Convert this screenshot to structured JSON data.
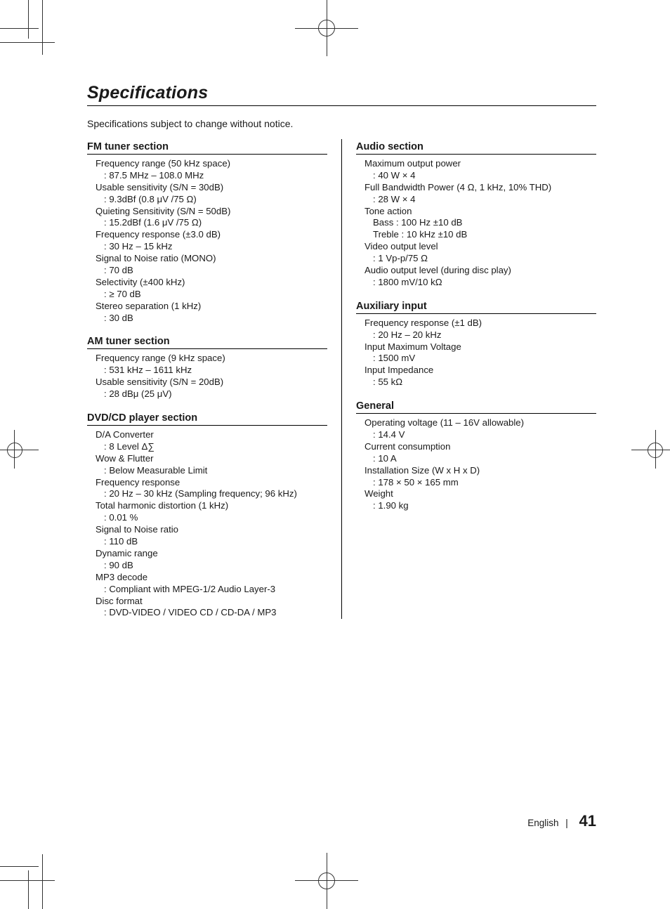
{
  "title": "Specifications",
  "note_text": "Specifications subject to change without notice.",
  "colors": {
    "text": "#1a1a1a",
    "rule": "#000000",
    "bg": "#ffffff"
  },
  "fonts": {
    "title_pt": 25,
    "section_pt": 14.5,
    "body_pt": 13.2
  },
  "layout": {
    "columns": 2,
    "rule_between_columns": true
  },
  "left": [
    {
      "heading": "FM tuner section",
      "items": [
        {
          "label": "Frequency range (50 kHz space)",
          "value": ": 87.5 MHz – 108.0 MHz"
        },
        {
          "label": "Usable sensitivity (S/N = 30dB)",
          "value": ": 9.3dBf (0.8 μV /75 Ω)"
        },
        {
          "label": "Quieting Sensitivity (S/N = 50dB)",
          "value": ": 15.2dBf (1.6 μV /75 Ω)"
        },
        {
          "label": "Frequency response (±3.0 dB)",
          "value": ": 30 Hz – 15 kHz"
        },
        {
          "label": "Signal to Noise ratio (MONO)",
          "value": ": 70 dB"
        },
        {
          "label": "Selectivity (±400 kHz)",
          "value": ": ≥ 70 dB"
        },
        {
          "label": "Stereo separation (1 kHz)",
          "value": ": 30 dB"
        }
      ]
    },
    {
      "heading": "AM tuner section",
      "items": [
        {
          "label": "Frequency range (9 kHz space)",
          "value": ": 531 kHz – 1611 kHz"
        },
        {
          "label": "Usable sensitivity (S/N = 20dB)",
          "value": ": 28 dBμ (25 μV)"
        }
      ]
    },
    {
      "heading": "DVD/CD player section",
      "items": [
        {
          "label": "D/A Converter",
          "value": ": 8 Level Δ∑"
        },
        {
          "label": "Wow & Flutter",
          "value": ": Below Measurable Limit"
        },
        {
          "label": "Frequency response",
          "value": ": 20 Hz – 30 kHz (Sampling frequency; 96 kHz)"
        },
        {
          "label": "Total harmonic distortion (1 kHz)",
          "value": ": 0.01 %"
        },
        {
          "label": "Signal to Noise ratio",
          "value": ": 110 dB"
        },
        {
          "label": "Dynamic range",
          "value": ": 90 dB"
        },
        {
          "label": "MP3 decode",
          "value": ": Compliant with MPEG-1/2 Audio Layer-3"
        },
        {
          "label": "Disc format",
          "value": ": DVD-VIDEO / VIDEO CD / CD-DA / MP3"
        }
      ]
    }
  ],
  "right": [
    {
      "heading": "Audio section",
      "items": [
        {
          "label": "Maximum output power",
          "value": ": 40 W × 4"
        },
        {
          "label": "Full Bandwidth Power (4 Ω, 1 kHz, 10% THD)",
          "value": ": 28 W × 4"
        },
        {
          "label": "Tone action",
          "value": "Bass : 100 Hz ±10 dB",
          "value2": "Treble : 10 kHz ±10 dB"
        },
        {
          "label": "Video output level",
          "value": ": 1 Vp-p/75 Ω"
        },
        {
          "label": "Audio output level (during disc play)",
          "value": ": 1800 mV/10 kΩ"
        }
      ]
    },
    {
      "heading": "Auxiliary input",
      "items": [
        {
          "label": "Frequency response (±1 dB)",
          "value": ": 20 Hz – 20 kHz"
        },
        {
          "label": "Input Maximum Voltage",
          "value": ": 1500 mV"
        },
        {
          "label": "Input Impedance",
          "value": ": 55 kΩ"
        }
      ]
    },
    {
      "heading": "General",
      "items": [
        {
          "label": "Operating voltage (11 – 16V allowable)",
          "value": ": 14.4 V"
        },
        {
          "label": "Current consumption",
          "value": ": 10 A"
        },
        {
          "label": "Installation Size (W x H x D)",
          "value": ": 178 × 50 × 165 mm"
        },
        {
          "label": "Weight",
          "value": ": 1.90 kg"
        }
      ]
    }
  ],
  "footer": {
    "language": "English",
    "separator": "|",
    "page": "41"
  }
}
